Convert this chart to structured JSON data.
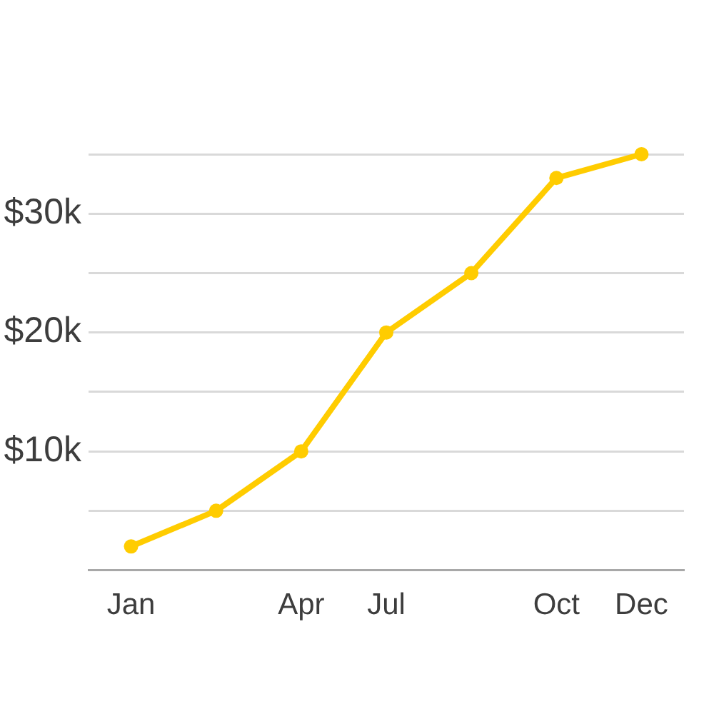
{
  "chart_data": {
    "type": "line",
    "categories": [
      "Jan",
      null,
      "Apr",
      "Jul",
      null,
      "Oct",
      "Dec"
    ],
    "values": [
      2000,
      5000,
      10000,
      20000,
      25000,
      33000,
      35000
    ],
    "color": "#ffcc00",
    "ylim": [
      0,
      35000
    ],
    "yticks": [
      {
        "value": 0,
        "label": null
      },
      {
        "value": 5000,
        "label": null
      },
      {
        "value": 10000,
        "label": "$10k"
      },
      {
        "value": 15000,
        "label": null
      },
      {
        "value": 20000,
        "label": "$20k"
      },
      {
        "value": 25000,
        "label": null
      },
      {
        "value": 30000,
        "label": "$30k"
      },
      {
        "value": 35000,
        "label": null
      }
    ],
    "grid": "y",
    "marker": "circle",
    "line_style": "solid"
  }
}
